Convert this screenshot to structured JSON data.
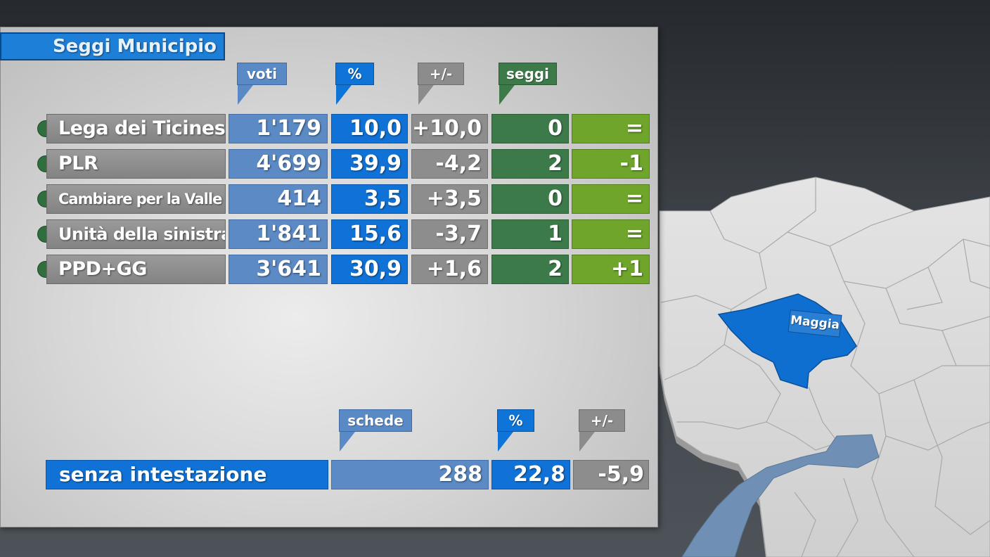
{
  "title": "Seggi Municipio",
  "headers": {
    "voti": "voti",
    "pct": "%",
    "diff": "+/-",
    "seggi": "seggi"
  },
  "parties": [
    {
      "name": "Lega dei Ticinesi",
      "voti": "1'179",
      "pct": "10,0",
      "diff": "+10,0",
      "seggi": "0",
      "change": "="
    },
    {
      "name": "PLR",
      "voti": "4'699",
      "pct": "39,9",
      "diff": "-4,2",
      "seggi": "2",
      "change": "-1"
    },
    {
      "name": "Cambiare per la Valle",
      "voti": "414",
      "pct": "3,5",
      "diff": "+3,5",
      "seggi": "0",
      "change": "="
    },
    {
      "name": "Unità della sinistra",
      "voti": "1'841",
      "pct": "15,6",
      "diff": "-3,7",
      "seggi": "1",
      "change": "="
    },
    {
      "name": "PPD+GG",
      "voti": "3'641",
      "pct": "30,9",
      "diff": "+1,6",
      "seggi": "2",
      "change": "+1"
    }
  ],
  "bottom_headers": {
    "schede": "schede",
    "pct": "%",
    "diff": "+/-"
  },
  "senza": {
    "label": "senza intestazione",
    "schede": "288",
    "pct": "22,8",
    "diff": "-5,9"
  },
  "map": {
    "highlighted_region": "Maggia"
  },
  "colors": {
    "blue": "#1072d6",
    "light_blue": "#5b8ac5",
    "grey": "#8d8d8d",
    "green": "#3d7a4a",
    "lime": "#6fa52a",
    "lake": "#6f90b4"
  }
}
